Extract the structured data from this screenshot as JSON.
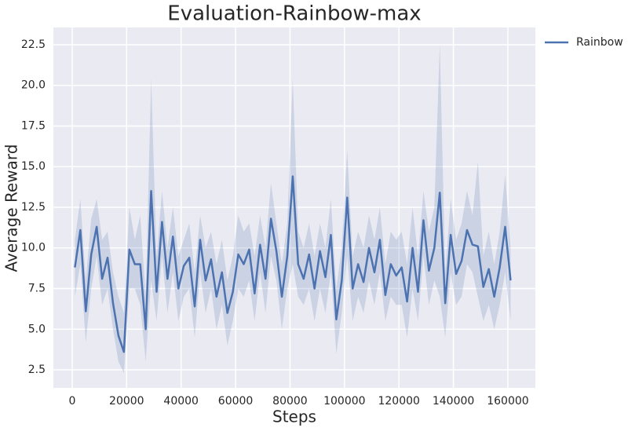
{
  "chart_data": {
    "type": "line",
    "title": "Evaluation-Rainbow-max",
    "xlabel": "Steps",
    "ylabel": "Average Reward",
    "x": [
      1000,
      3000,
      5000,
      7000,
      9000,
      11000,
      13000,
      15000,
      17000,
      19000,
      21000,
      23000,
      25000,
      27000,
      29000,
      31000,
      33000,
      35000,
      37000,
      39000,
      41000,
      43000,
      45000,
      47000,
      49000,
      51000,
      53000,
      55000,
      57000,
      59000,
      61000,
      63000,
      65000,
      67000,
      69000,
      71000,
      73000,
      75000,
      77000,
      79000,
      81000,
      83000,
      85000,
      87000,
      89000,
      91000,
      93000,
      95000,
      97000,
      99000,
      101000,
      103000,
      105000,
      107000,
      109000,
      111000,
      113000,
      115000,
      117000,
      119000,
      121000,
      123000,
      125000,
      127000,
      129000,
      131000,
      133000,
      135000,
      137000,
      139000,
      141000,
      143000,
      145000,
      147000,
      149000,
      151000,
      153000,
      155000,
      157000,
      159000,
      161000
    ],
    "series": [
      {
        "name": "Rainbow",
        "color": "#4c72b0",
        "values": [
          8.8,
          11.1,
          6.1,
          9.6,
          11.3,
          8.1,
          9.4,
          6.6,
          4.6,
          3.6,
          9.9,
          9.0,
          9.0,
          5.0,
          13.5,
          7.3,
          11.6,
          8.1,
          10.7,
          7.5,
          8.9,
          9.4,
          6.4,
          10.5,
          8.0,
          9.3,
          7.0,
          8.5,
          6.0,
          7.3,
          9.6,
          9.0,
          9.9,
          7.2,
          10.2,
          8.1,
          11.8,
          9.8,
          7.0,
          9.5,
          14.4,
          9.0,
          8.1,
          9.6,
          7.5,
          9.8,
          8.2,
          10.8,
          5.6,
          8.0,
          13.1,
          7.5,
          9.0,
          7.9,
          10.0,
          8.5,
          10.5,
          7.1,
          9.0,
          8.3,
          8.8,
          6.7,
          10.0,
          7.3,
          11.7,
          8.6,
          10.0,
          13.4,
          6.6,
          10.8,
          8.4,
          9.2,
          11.1,
          10.2,
          10.1,
          7.6,
          8.7,
          7.0,
          8.8,
          11.3,
          8.0
        ],
        "lower": [
          7.0,
          9.0,
          4.2,
          7.5,
          9.5,
          6.5,
          7.5,
          5.0,
          3.0,
          2.3,
          7.5,
          7.5,
          6.5,
          3.0,
          8.0,
          5.5,
          9.5,
          6.0,
          8.5,
          5.5,
          7.0,
          7.5,
          4.5,
          8.5,
          6.0,
          7.5,
          5.0,
          6.5,
          4.0,
          5.5,
          7.5,
          7.0,
          8.0,
          5.5,
          8.5,
          6.0,
          9.5,
          8.0,
          5.0,
          7.5,
          9.0,
          7.0,
          6.5,
          7.5,
          5.5,
          7.5,
          6.0,
          8.5,
          3.5,
          6.0,
          9.5,
          5.5,
          7.0,
          6.0,
          8.0,
          6.5,
          8.5,
          5.5,
          7.0,
          6.5,
          6.5,
          4.5,
          7.5,
          5.5,
          9.5,
          6.5,
          8.0,
          7.0,
          4.5,
          8.5,
          6.5,
          7.0,
          9.0,
          8.5,
          7.0,
          5.5,
          6.5,
          5.0,
          6.5,
          8.5,
          5.5
        ],
        "upper": [
          10.5,
          13.0,
          8.0,
          11.8,
          13.0,
          10.5,
          11.0,
          8.5,
          7.0,
          6.0,
          12.5,
          10.5,
          12.0,
          7.0,
          20.4,
          9.5,
          13.5,
          10.0,
          12.5,
          9.5,
          10.5,
          11.5,
          8.5,
          12.0,
          10.0,
          11.0,
          9.0,
          10.5,
          8.0,
          9.5,
          12.0,
          11.0,
          11.5,
          9.5,
          12.0,
          10.0,
          14.0,
          11.5,
          9.0,
          11.5,
          20.4,
          11.0,
          10.0,
          11.5,
          9.5,
          11.5,
          10.0,
          13.0,
          7.5,
          10.0,
          16.0,
          9.5,
          11.0,
          10.0,
          12.0,
          10.5,
          12.5,
          9.0,
          11.0,
          10.5,
          11.0,
          9.0,
          12.5,
          9.5,
          13.5,
          11.0,
          12.5,
          22.5,
          8.5,
          13.0,
          10.5,
          11.5,
          13.5,
          12.0,
          15.3,
          9.5,
          11.0,
          9.0,
          11.0,
          14.5,
          10.0
        ]
      }
    ],
    "xlim": [
      -6900,
      170100
    ],
    "ylim": [
      1.39,
      23.56
    ],
    "xticks": [
      0,
      20000,
      40000,
      60000,
      80000,
      100000,
      120000,
      140000,
      160000
    ],
    "yticks": [
      2.5,
      {
        "value": 5,
        "label": "5.0"
      },
      7.5,
      {
        "value": 10,
        "label": "10.0"
      },
      12.5,
      {
        "value": 15,
        "label": "15.0"
      },
      17.5,
      {
        "value": 20,
        "label": "20.0"
      },
      22.5
    ],
    "grid": true,
    "background": "#eaeaf2",
    "legend": "outside-upper-right"
  }
}
